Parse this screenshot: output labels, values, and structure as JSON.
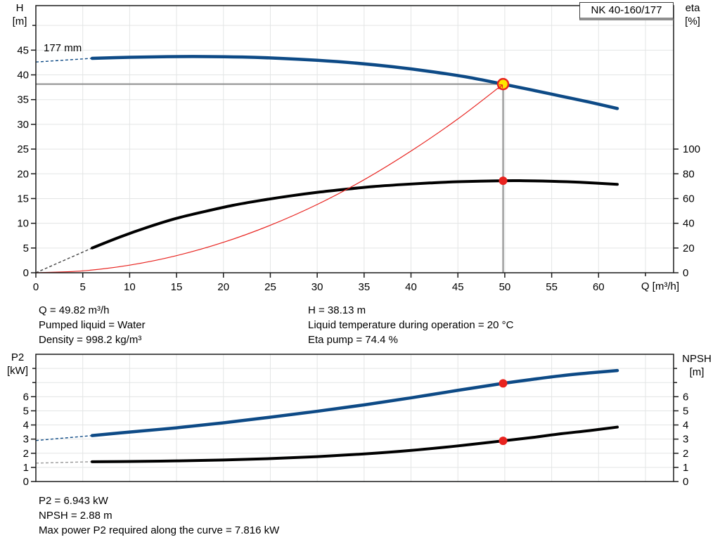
{
  "model": "NK 40-160/177",
  "annotations": {
    "top_left": [
      "Q = 49.82 m³/h",
      "Pumped liquid = Water",
      "Density = 998.2 kg/m³"
    ],
    "top_right": [
      "H = 38.13 m",
      "Liquid temperature during operation = 20 °C",
      "Eta pump = 74.4 %"
    ],
    "bottom": [
      "P2 = 6.943 kW",
      "NPSH = 2.88 m",
      "Max power P2 required along the curve = 7.816 kW"
    ]
  },
  "colors": {
    "curve_blue": "#0d4a86",
    "curve_black": "#000000",
    "curve_red": "#e8231f",
    "duty_yellow": "#ffe600",
    "grid": "#e3e5e5",
    "frame": "#1a1a1a",
    "duty_line": "#8c8c8c"
  },
  "chart_data": [
    {
      "type": "line",
      "title": "NK 40-160/177",
      "x_label": "Q [m³/h]",
      "y_left_label": [
        "H",
        "[m]"
      ],
      "y_right_label": [
        "eta",
        "[%]"
      ],
      "impeller_label": "177 mm",
      "x_ticks": [
        0,
        5,
        10,
        15,
        20,
        25,
        30,
        35,
        40,
        45,
        50,
        55,
        60
      ],
      "x_minor_ticks": [
        65
      ],
      "xlim": [
        0,
        68
      ],
      "y_left_ticks": [
        0,
        5,
        10,
        15,
        20,
        25,
        30,
        35,
        40,
        45
      ],
      "y_left_minor_ticks": [
        50
      ],
      "ylim_left": [
        0,
        54
      ],
      "y_right_ticks": [
        0,
        20,
        40,
        60,
        80,
        100
      ],
      "ylim_right": [
        0,
        216
      ],
      "grid": true,
      "series": [
        {
          "name": "head-curve",
          "axis": "left",
          "color": "#0d4a86",
          "width": 4.5,
          "lead": [
            [
              0,
              42.6
            ],
            [
              6,
              43.35
            ]
          ],
          "lead_color": "#0d4a86",
          "points": [
            [
              6,
              43.35
            ],
            [
              10,
              43.55
            ],
            [
              14,
              43.68
            ],
            [
              18,
              43.7
            ],
            [
              22,
              43.6
            ],
            [
              26,
              43.35
            ],
            [
              30,
              42.95
            ],
            [
              34,
              42.4
            ],
            [
              38,
              41.65
            ],
            [
              42,
              40.7
            ],
            [
              46,
              39.55
            ],
            [
              49.82,
              38.13
            ],
            [
              53,
              36.9
            ],
            [
              56,
              35.7
            ],
            [
              59,
              34.5
            ],
            [
              62,
              33.2
            ]
          ]
        },
        {
          "name": "efficiency-curve",
          "axis": "right",
          "color": "#000000",
          "width": 4,
          "lead": [
            [
              0,
              0
            ],
            [
              6,
              20
            ]
          ],
          "lead_color": "#444444",
          "points": [
            [
              6,
              20
            ],
            [
              9,
              29
            ],
            [
              12,
              37
            ],
            [
              15,
              44
            ],
            [
              18,
              49.5
            ],
            [
              21,
              54.5
            ],
            [
              24,
              58.5
            ],
            [
              27,
              62
            ],
            [
              30,
              65
            ],
            [
              33,
              67.5
            ],
            [
              36,
              69.7
            ],
            [
              39,
              71.3
            ],
            [
              42,
              72.6
            ],
            [
              45,
              73.6
            ],
            [
              49.82,
              74.4
            ],
            [
              52,
              74.4
            ],
            [
              55,
              74
            ],
            [
              58,
              73.2
            ],
            [
              62,
              71.5
            ]
          ]
        },
        {
          "name": "system-curve",
          "axis": "left",
          "color": "#e8231f",
          "width": 1.2,
          "points": [
            [
              0,
              0
            ],
            [
              5,
              0.38
            ],
            [
              10,
              1.54
            ],
            [
              15,
              3.46
            ],
            [
              20,
              6.15
            ],
            [
              25,
              9.6
            ],
            [
              30,
              13.8
            ],
            [
              35,
              18.8
            ],
            [
              40,
              24.6
            ],
            [
              45,
              31.1
            ],
            [
              49.82,
              38.13
            ]
          ]
        }
      ],
      "duty_point": {
        "q": 49.82,
        "h": 38.13,
        "eta": 74.4
      }
    },
    {
      "type": "line",
      "x_label": "",
      "y_left_label": [
        "P2",
        "[kW]"
      ],
      "y_right_label": [
        "NPSH",
        "[m]"
      ],
      "x_ticks": [],
      "x_minor_ticks": [],
      "xlim": [
        0,
        68
      ],
      "y_left_ticks": [
        0,
        1,
        2,
        3,
        4,
        5,
        6
      ],
      "y_left_minor_ticks": [
        7,
        8
      ],
      "ylim_left": [
        0,
        9
      ],
      "y_right_ticks": [
        0,
        1,
        2,
        3,
        4,
        5,
        6
      ],
      "y_right_minor_ticks": [
        7,
        8
      ],
      "ylim_right": [
        0,
        9
      ],
      "grid": true,
      "series": [
        {
          "name": "p2-curve",
          "axis": "left",
          "color": "#0d4a86",
          "width": 4.5,
          "lead": [
            [
              0,
              2.9
            ],
            [
              6,
              3.25
            ]
          ],
          "lead_color": "#0d4a86",
          "points": [
            [
              6,
              3.25
            ],
            [
              10,
              3.5
            ],
            [
              15,
              3.8
            ],
            [
              20,
              4.15
            ],
            [
              25,
              4.55
            ],
            [
              30,
              4.97
            ],
            [
              35,
              5.42
            ],
            [
              40,
              5.92
            ],
            [
              45,
              6.45
            ],
            [
              49.82,
              6.943
            ],
            [
              53,
              7.23
            ],
            [
              56,
              7.48
            ],
            [
              59,
              7.68
            ],
            [
              62,
              7.85
            ]
          ]
        },
        {
          "name": "npsh-curve",
          "axis": "right",
          "color": "#000000",
          "width": 4,
          "lead": [
            [
              0,
              1.3
            ],
            [
              6,
              1.4
            ]
          ],
          "lead_color": "#999999",
          "points": [
            [
              6,
              1.4
            ],
            [
              10,
              1.42
            ],
            [
              15,
              1.46
            ],
            [
              20,
              1.52
            ],
            [
              25,
              1.62
            ],
            [
              30,
              1.76
            ],
            [
              35,
              1.95
            ],
            [
              40,
              2.2
            ],
            [
              45,
              2.52
            ],
            [
              49.82,
              2.88
            ],
            [
              53,
              3.12
            ],
            [
              56,
              3.38
            ],
            [
              59,
              3.6
            ],
            [
              62,
              3.85
            ]
          ]
        }
      ],
      "duty_point": {
        "q": 49.82,
        "p2": 6.943,
        "npsh": 2.88
      }
    }
  ]
}
